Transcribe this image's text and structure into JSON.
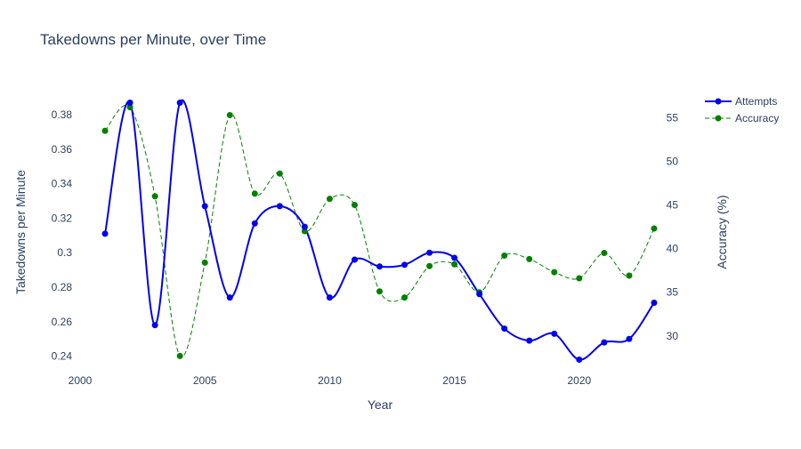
{
  "chart_data": {
    "type": "line",
    "title": "Takedowns per Minute, over Time",
    "xlabel": "Year",
    "ylabel": "Takedowns per Minute",
    "y2label": "Accuracy (%)",
    "xlim": [
      2000,
      2024
    ],
    "ylim": [
      0.23,
      0.395
    ],
    "y2lim": [
      25.7,
      58.3
    ],
    "x_ticks": [
      2000,
      2005,
      2010,
      2015,
      2020
    ],
    "y_ticks": [
      0.24,
      0.26,
      0.28,
      0.3,
      0.32,
      0.34,
      0.36,
      0.38
    ],
    "y_tick_labels": [
      "0.24",
      "0.26",
      "0.28",
      "0.3",
      "0.32",
      "0.34",
      "0.36",
      "0.38"
    ],
    "y2_ticks": [
      30,
      35,
      40,
      45,
      50,
      55
    ],
    "grid": false,
    "legend_position": "top-right",
    "x": [
      2001,
      2002,
      2003,
      2004,
      2005,
      2006,
      2007,
      2008,
      2009,
      2010,
      2011,
      2012,
      2013,
      2014,
      2015,
      2016,
      2017,
      2018,
      2019,
      2020,
      2021,
      2022,
      2023
    ],
    "series": [
      {
        "name": "Attempts",
        "axis": "left",
        "color": "#0000ee",
        "style": "solid",
        "values": [
          0.311,
          0.387,
          0.258,
          0.387,
          0.327,
          0.274,
          0.317,
          0.327,
          0.315,
          0.274,
          0.296,
          0.292,
          0.293,
          0.3,
          0.297,
          0.276,
          0.256,
          0.249,
          0.253,
          0.238,
          0.248,
          0.25,
          0.271
        ]
      },
      {
        "name": "Accuracy",
        "axis": "right",
        "color": "#008000",
        "style": "dashed",
        "values": [
          53.5,
          56.2,
          46.0,
          27.7,
          38.4,
          55.3,
          46.3,
          48.6,
          42.0,
          45.7,
          45.0,
          35.1,
          34.4,
          38.0,
          38.2,
          35.0,
          39.2,
          38.8,
          37.3,
          36.6,
          39.5,
          36.9,
          42.3
        ]
      }
    ]
  }
}
